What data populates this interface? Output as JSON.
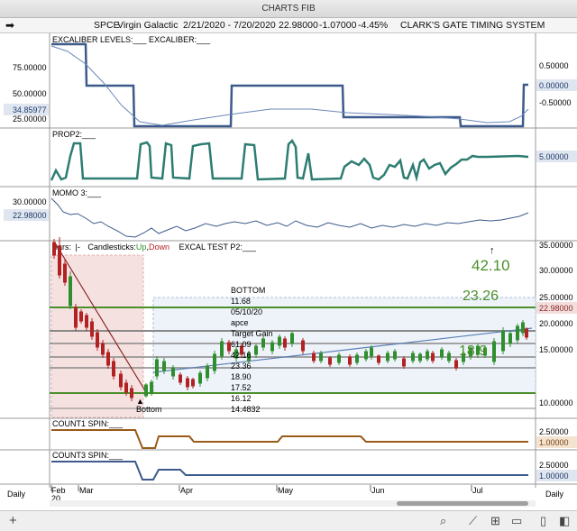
{
  "window": {
    "title": "CHARTS FIB"
  },
  "infobar": {
    "symbol": "SPCE",
    "company": "Virgin Galactic",
    "date_range": "2/21/2020 - 7/20/2020",
    "price": "22.98000",
    "change": "-1.07000",
    "change_pct": "-4.45%",
    "system": "CLARK'S GATE TIMING SYSTEM"
  },
  "panels": {
    "excaliber": {
      "title": "EXCALIBER LEVELS:___    EXCALIBER:___",
      "left_ticks": [
        "75.00000",
        "50.00000",
        "25.00000"
      ],
      "left_value": "34.85977",
      "right_ticks": [
        "0.50000",
        "-0.50000"
      ],
      "right_value": "0.00000"
    },
    "prop2": {
      "title": "PROP2:___",
      "right_value": "5.00000"
    },
    "momo3": {
      "title": "MOMO 3:___",
      "left_ticks": [
        "30.00000"
      ],
      "left_value": "22.98000"
    },
    "price": {
      "title_prefix": "Bars:",
      "title_bars_mark": "|-",
      "title_candles": "Candlesticks:",
      "title_up": "Up",
      "title_sep": ",",
      "title_down": "Down",
      "title_rest": "EXCAL TEST P2:___",
      "right_ticks": [
        "35.00000",
        "30.00000",
        "25.00000",
        "20.00000",
        "15.00000",
        "10.00000"
      ],
      "right_value": "22.98000",
      "annotation_lines": [
        "BOTTOM",
        "11.68",
        "05/10/20",
        "apce",
        "Target Gain",
        "61.09",
        "42.16",
        "23.36",
        "18.90",
        "17.52",
        "16.12",
        "14.4832"
      ],
      "level_labels": [
        "42.10",
        "23.26",
        "18.9"
      ],
      "bottom_label": "Bottom"
    },
    "count1": {
      "title": "COUNT1 SPIN:___",
      "right_ticks": [
        "2.50000"
      ],
      "right_value": "1.00000"
    },
    "count3": {
      "title": "COUNT3 SPIN:___",
      "right_ticks": [
        "2.50000"
      ],
      "right_value": "1.00000"
    }
  },
  "xaxis": {
    "months": [
      "Feb",
      "Mar",
      "Apr",
      "May",
      "Jun",
      "Jul"
    ],
    "year": "20"
  },
  "timeframe": {
    "left": "Daily",
    "right": "Daily"
  },
  "colors": {
    "blue_line": "#3c5a8c",
    "green_line": "#2e7d72",
    "orange_line": "#9a5a1a",
    "level_green": "#4b8f2a",
    "value_box": "#dfe6f0"
  },
  "toolbar": {
    "icons": [
      "plus-icon",
      "search-icon",
      "line-chart-icon",
      "grid-icon",
      "panel-icon",
      "book-icon",
      "sidebar-icon"
    ]
  }
}
